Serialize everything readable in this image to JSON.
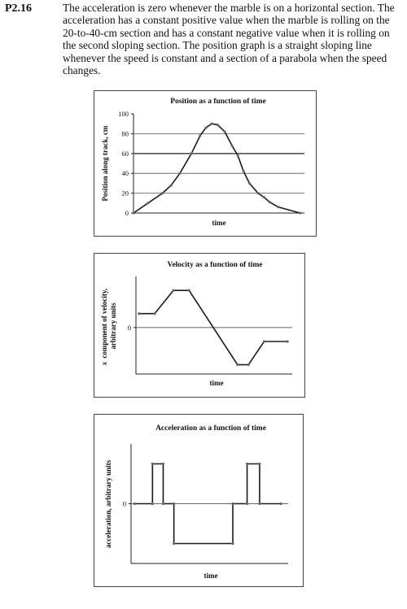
{
  "problem": {
    "number": "P2.16",
    "text": "The acceleration is zero whenever the marble is on a horizontal section. The acceleration has a constant positive value when the marble is rolling on the 20-to-40-cm section and has a constant negative value when it is rolling on the second sloping section. The position graph is a straight sloping line whenever the speed is constant and a section of a parabola when the speed changes."
  },
  "chart_data": [
    {
      "type": "line",
      "title": "Position as a function of time",
      "xlabel": "time",
      "ylabel": "Position along track, cm",
      "ylim": [
        0,
        100
      ],
      "yticks": [
        "0",
        "20",
        "40",
        "60",
        "80",
        "100"
      ],
      "grid": true,
      "series": [
        {
          "x": [
            0,
            1,
            2,
            2.6,
            3.2,
            4,
            4.6,
            5,
            5.4,
            5.8,
            6.3,
            6.8,
            7.2,
            7.6,
            8,
            8.6,
            9,
            9.4,
            10,
            11.5
          ],
          "y": [
            0,
            10,
            20,
            28,
            40,
            60,
            78,
            86,
            90,
            89,
            82,
            68,
            58,
            42,
            30,
            20,
            16,
            11,
            6,
            0
          ]
        }
      ]
    },
    {
      "type": "line",
      "title": "Velocity as a function of time",
      "xlabel": "time",
      "ylabel": "x component of velocity, arbitrary units",
      "yticks": [
        "0"
      ],
      "ylim": [
        -2,
        2.2
      ],
      "series": [
        {
          "x": [
            0,
            1,
            1.6,
            2.2,
            3.2,
            6.3,
            7,
            8,
            9.5
          ],
          "y": [
            0.6,
            0.6,
            1.1,
            1.6,
            1.6,
            -1.6,
            -1.6,
            -0.6,
            -0.6
          ]
        }
      ]
    },
    {
      "type": "line",
      "title": "Acceleration as a function of time",
      "xlabel": "time",
      "ylabel": "acceleration, arbitrary units",
      "yticks": [
        "0"
      ],
      "ylim": [
        -3,
        3
      ],
      "series": [
        {
          "x": [
            0,
            1,
            1,
            1.6,
            1.6,
            2.2,
            2.2,
            5.5,
            5.5,
            6.3,
            6.3,
            7,
            7,
            8.2
          ],
          "y": [
            0,
            0,
            2,
            2,
            0,
            0,
            -2,
            -2,
            0,
            0,
            2,
            2,
            0,
            0
          ]
        }
      ]
    }
  ]
}
